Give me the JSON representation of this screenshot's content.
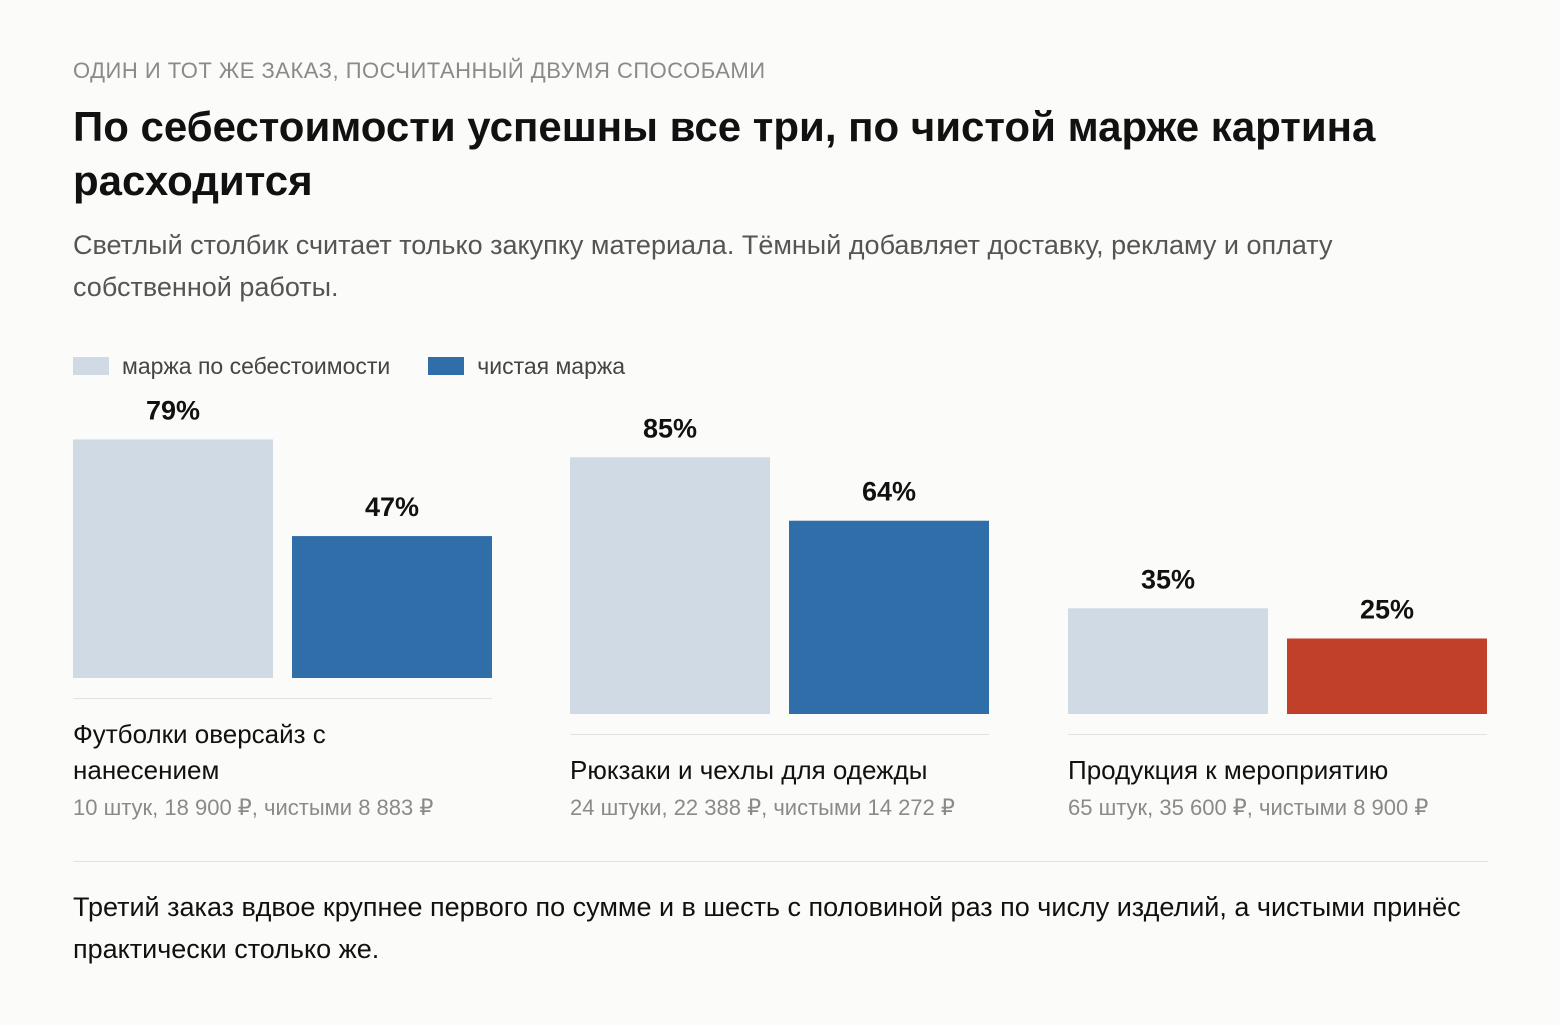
{
  "header": {
    "eyebrow": "ОДИН И ТОТ ЖЕ ЗАКАЗ, ПОСЧИТАННЫЙ ДВУМЯ СПОСОБАМИ",
    "title": "По себестоимости успешны все три, по чистой марже картина расходится",
    "subtitle": "Светлый столбик считает только закупку материала. Тёмный добавляет доставку, рекламу и оплату собственной работы."
  },
  "legend": [
    {
      "label": "маржа по себестоимости",
      "color": "#d0dae4"
    },
    {
      "label": "чистая маржа",
      "color": "#2f6ea8"
    }
  ],
  "colors": {
    "cost_margin": "#d0dae4",
    "net_margin": "#2f6ea8",
    "net_margin_low": "#c0402a",
    "axis_rule": "#e2e2e2"
  },
  "chart_data": {
    "type": "bar",
    "categories": [
      "Футболки оверсайз с нанесением",
      "Рюкзаки и чехлы для одежды",
      "Продукция к мероприятию"
    ],
    "category_details": [
      "10 штук, 18 900 ₽, чистыми 8 883 ₽",
      "24 штуки, 22 388 ₽, чистыми 14 272 ₽",
      "65 штук, 35 600 ₽, чистыми 8 900 ₽"
    ],
    "series": [
      {
        "name": "маржа по себестоимости",
        "values": [
          79,
          85,
          35
        ],
        "labels": [
          "79%",
          "85%",
          "35%"
        ]
      },
      {
        "name": "чистая маржа",
        "values": [
          47,
          64,
          25
        ],
        "labels": [
          "47%",
          "64%",
          "25%"
        ]
      }
    ],
    "highlight": {
      "series": 1,
      "index": 2,
      "color": "#c0402a"
    },
    "unit": "%",
    "ylim": [
      0,
      100
    ],
    "grid": false,
    "legend_position": "top-left"
  },
  "footnote": "Третий заказ вдвое крупнее первого по сумме и в шесть с половиной раз по числу изделий, а чистыми принёс практически столько же."
}
